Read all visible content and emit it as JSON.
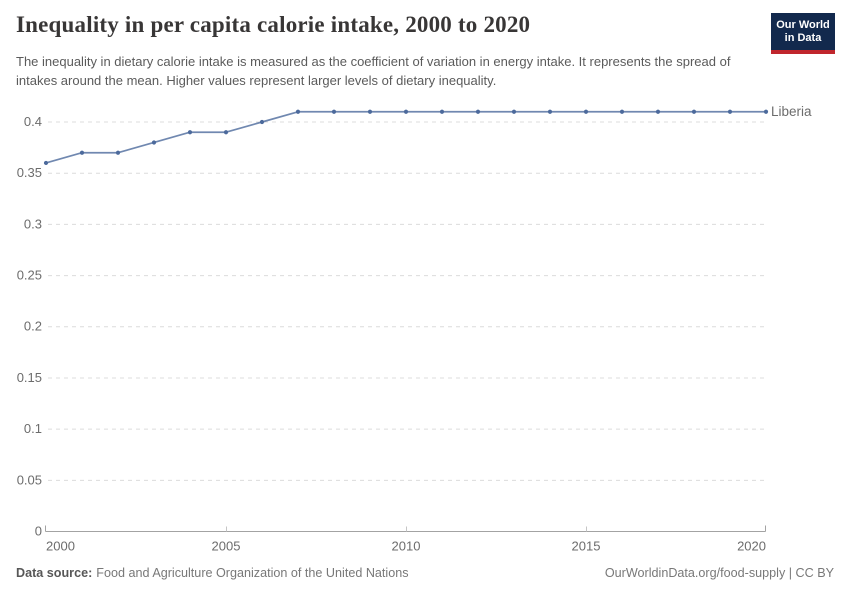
{
  "header": {
    "title": "Inequality in per capita calorie intake, 2000 to 2020",
    "subtitle": "The inequality in dietary calorie intake is measured as the coefficient of variation in energy intake. It represents the spread of intakes around the mean. Higher values represent larger levels of dietary inequality.",
    "logo": {
      "line1": "Our World",
      "line2": "in Data"
    }
  },
  "chart_data": {
    "type": "line",
    "title": "Inequality in per capita calorie intake, 2000 to 2020",
    "x": [
      2000,
      2001,
      2002,
      2003,
      2004,
      2005,
      2006,
      2007,
      2008,
      2009,
      2010,
      2011,
      2012,
      2013,
      2014,
      2015,
      2016,
      2017,
      2018,
      2019,
      2020
    ],
    "series": [
      {
        "name": "Liberia",
        "color": "#4c6a9c",
        "values": [
          0.36,
          0.37,
          0.37,
          0.38,
          0.39,
          0.39,
          0.4,
          0.41,
          0.41,
          0.41,
          0.41,
          0.41,
          0.41,
          0.41,
          0.41,
          0.41,
          0.41,
          0.41,
          0.41,
          0.41,
          0.41
        ]
      }
    ],
    "xlabel": "",
    "ylabel": "",
    "xlim": [
      2000,
      2020
    ],
    "ylim": [
      0,
      0.41
    ],
    "xticks": [
      2000,
      2005,
      2010,
      2015,
      2020
    ],
    "yticks": [
      {
        "value": 0,
        "label": "0"
      },
      {
        "value": 0.05,
        "label": "0.05"
      },
      {
        "value": 0.1,
        "label": "0.1"
      },
      {
        "value": 0.15,
        "label": "0.15"
      },
      {
        "value": 0.2,
        "label": "0.2"
      },
      {
        "value": 0.25,
        "label": "0.25"
      },
      {
        "value": 0.3,
        "label": "0.3"
      },
      {
        "value": 0.35,
        "label": "0.35"
      },
      {
        "value": 0.4,
        "label": "0.4"
      }
    ],
    "grid": "horizontal-dashed",
    "legend_position": "end-of-line"
  },
  "footer": {
    "source_label": "Data source:",
    "source": "Food and Agriculture Organization of the United Nations",
    "credit": "OurWorldinData.org/food-supply | CC BY"
  },
  "colors": {
    "accent_line": "#4c6a9c",
    "grid": "#dcdcdc",
    "axis": "#a3a3a3",
    "minor_tick": "#c6c6c6",
    "tick_text": "#6c6c6c",
    "title_text": "#383636",
    "subtitle_text": "#5b5b5b",
    "footer_text": "#787878",
    "logo_bg": "#12294d",
    "logo_red": "#c0262d",
    "background": "#ffffff"
  }
}
